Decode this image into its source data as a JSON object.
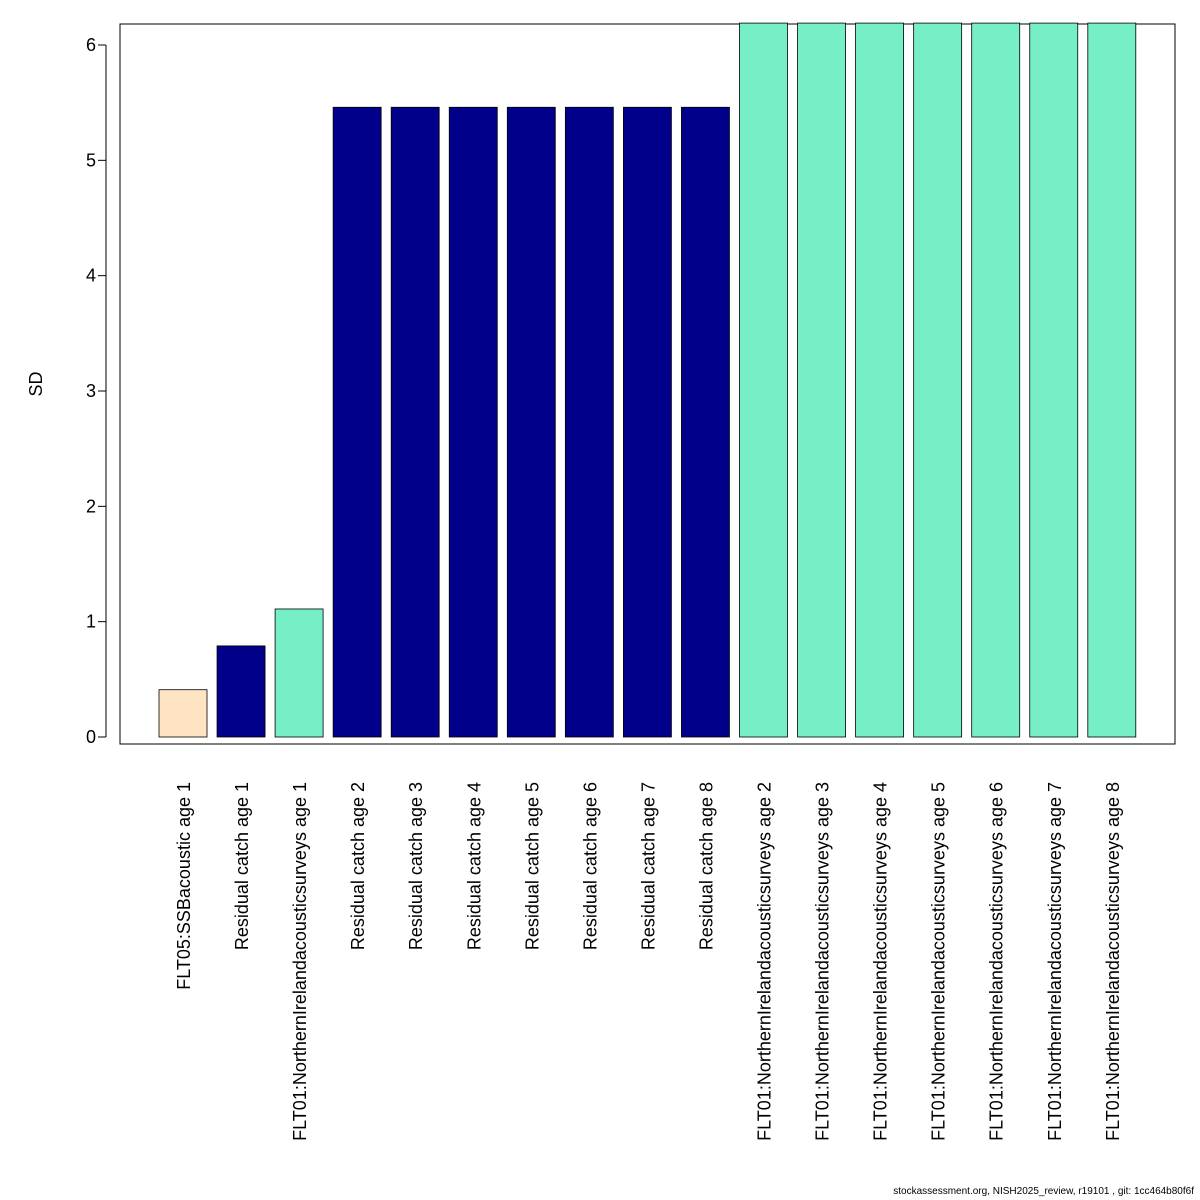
{
  "chart_data": {
    "type": "bar",
    "title": "",
    "xlabel": "",
    "ylabel": "SD",
    "ylim": [
      0,
      6.2
    ],
    "yticks": [
      0,
      1,
      2,
      3,
      4,
      5,
      6
    ],
    "grid": false,
    "categories": [
      "FLT05:SSBacoustic age 1",
      "Residual catch age 1",
      "FLT01:NorthernIrelandacousticsurveys age 1",
      "Residual catch age 2",
      "Residual catch age 3",
      "Residual catch age 4",
      "Residual catch age 5",
      "Residual catch age 6",
      "Residual catch age 7",
      "Residual catch age 8",
      "FLT01:NorthernIrelandacousticsurveys age 2",
      "FLT01:NorthernIrelandacousticsurveys age 3",
      "FLT01:NorthernIrelandacousticsurveys age 4",
      "FLT01:NorthernIrelandacousticsurveys age 5",
      "FLT01:NorthernIrelandacousticsurveys age 6",
      "FLT01:NorthernIrelandacousticsurveys age 7",
      "FLT01:NorthernIrelandacousticsurveys age 8"
    ],
    "values": [
      0.41,
      0.79,
      1.11,
      5.46,
      5.46,
      5.46,
      5.46,
      5.46,
      5.46,
      5.46,
      6.19,
      6.19,
      6.19,
      6.19,
      6.19,
      6.19,
      6.19
    ],
    "bar_colors": [
      "#FFE4C4",
      "#00008B",
      "#76EEC6",
      "#00008B",
      "#00008B",
      "#00008B",
      "#00008B",
      "#00008B",
      "#00008B",
      "#00008B",
      "#76EEC6",
      "#76EEC6",
      "#76EEC6",
      "#76EEC6",
      "#76EEC6",
      "#76EEC6",
      "#76EEC6"
    ]
  },
  "footer": "stockassessment.org, NISH2025_review, r19101 , git: 1cc464b80f6f"
}
